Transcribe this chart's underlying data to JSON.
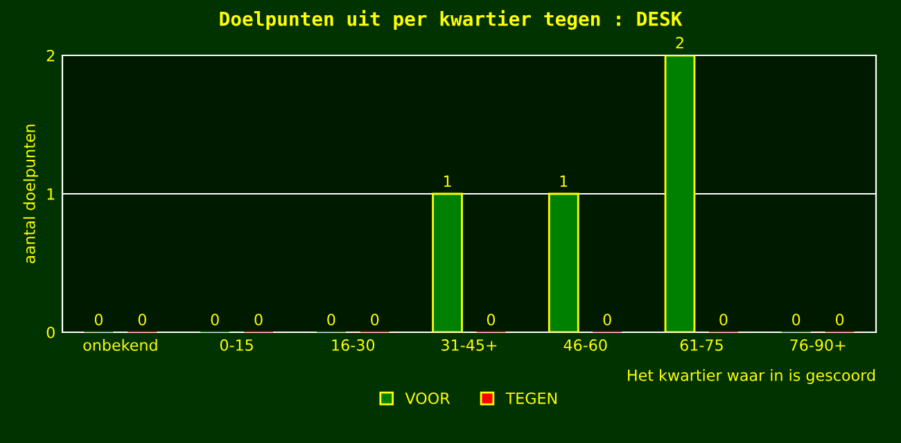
{
  "chart_data": {
    "type": "bar",
    "title": "Doelpunten uit per kwartier tegen : DESK",
    "categories": [
      "onbekend",
      "0-15",
      "16-30",
      "31-45+",
      "46-60",
      "61-75",
      "76-90+"
    ],
    "series": [
      {
        "name": "VOOR",
        "color": "#008000",
        "values": [
          0,
          0,
          0,
          1,
          1,
          2,
          0
        ]
      },
      {
        "name": "TEGEN",
        "color": "#ff0000",
        "values": [
          0,
          0,
          0,
          0,
          0,
          0,
          0
        ]
      }
    ],
    "ylabel": "aantal doelpunten",
    "xlabel": "Het kwartier waar in is gescoord",
    "ylim": [
      0,
      2
    ],
    "yticks": [
      0,
      1,
      2
    ],
    "grid": "y",
    "legend": "bottom",
    "data_labels": true
  }
}
